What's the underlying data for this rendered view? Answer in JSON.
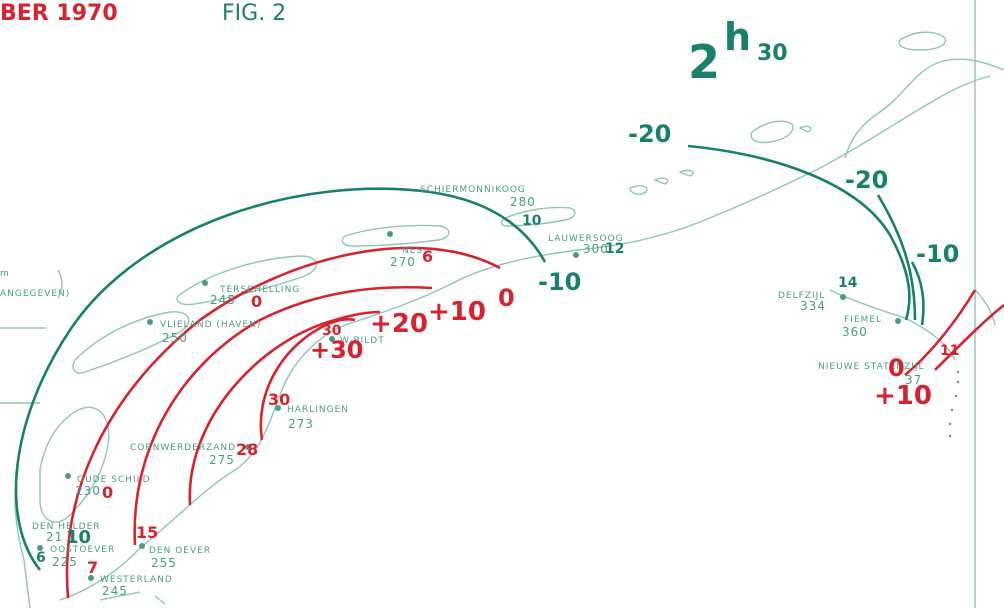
{
  "header": {
    "title_fragment": "BER 1970",
    "fig_label": "FIG. 2"
  },
  "time": {
    "hour": "2",
    "h": "h",
    "minutes": "30"
  },
  "colors": {
    "red": "#d6232e",
    "green": "#19806b",
    "coast": "#8fc5b4"
  },
  "legend": {
    "frag1": "m",
    "frag2": "ANGEGEVEN)"
  },
  "stations": [
    {
      "name": "SCHIERMONNIKOOG",
      "value": "280"
    },
    {
      "name": "NES",
      "value": "270"
    },
    {
      "name": "TERSCHELLING",
      "value": "245"
    },
    {
      "name": "VLIELAND (HAVEN)",
      "value": "250"
    },
    {
      "name": "LAUWERSOOG",
      "value": "300"
    },
    {
      "name": "DELFZIJL",
      "value": "334"
    },
    {
      "name": "FIEMEL",
      "value": "360"
    },
    {
      "name": "NIEUWE STATENZIJL",
      "value": "37"
    },
    {
      "name": "W-BILDT",
      "value": ""
    },
    {
      "name": "HARLINGEN",
      "value": "273"
    },
    {
      "name": "CORNWERDERZAND",
      "value": "275"
    },
    {
      "name": "OUDE SCHILD",
      "value": "230"
    },
    {
      "name": "DEN HELDER",
      "value": "21"
    },
    {
      "name": "OOSTOEVER",
      "value": "225"
    },
    {
      "name": "DEN OEVER",
      "value": "255"
    },
    {
      "name": "WESTERLAND",
      "value": "245"
    }
  ],
  "green_labels": [
    "-20",
    "-20",
    "-10",
    "-10",
    "10",
    "12",
    "14",
    "10",
    "6"
  ],
  "red_labels": [
    "6",
    "0",
    "0",
    "+10",
    "+20",
    "+30",
    "30",
    "28",
    "0",
    "15",
    "7",
    "30",
    "0",
    "+10",
    "11"
  ]
}
